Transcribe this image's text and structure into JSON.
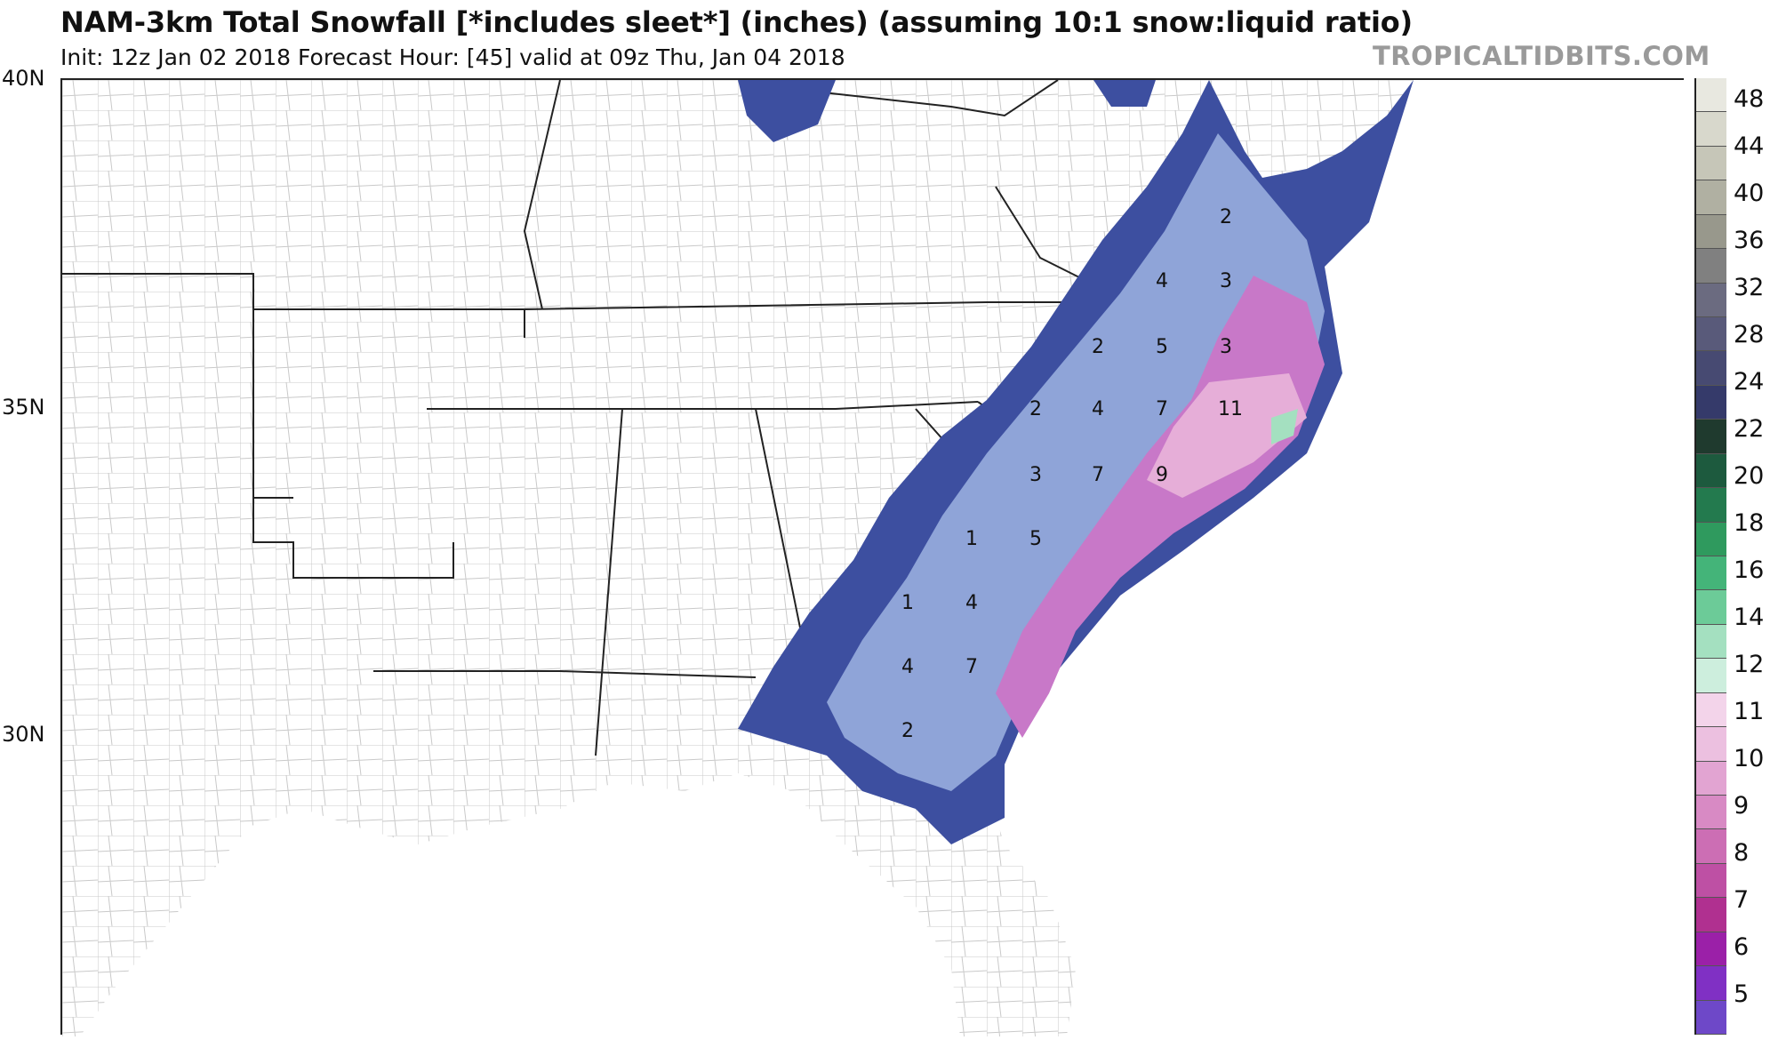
{
  "title": "NAM-3km Total Snowfall [*includes sleet*] (inches) (assuming 10:1 snow:liquid ratio)",
  "subtitle": "Init: 12z Jan 02 2018   Forecast Hour: [45]   valid at 09z Thu, Jan 04 2018",
  "watermark": "TROPICALTIDBITS.COM",
  "lat_labels": [
    "40N",
    "35N",
    "30N"
  ],
  "colorbar": {
    "labels": [
      "48",
      "44",
      "40",
      "36",
      "32",
      "28",
      "24",
      "22",
      "20",
      "18",
      "16",
      "14",
      "12",
      "11",
      "10",
      "9",
      "8",
      "7",
      "6",
      "5"
    ],
    "colors": [
      "#e8e8e0",
      "#d8d8cc",
      "#c6c6b8",
      "#b0b0a2",
      "#98988c",
      "#808080",
      "#6b6b80",
      "#595a7a",
      "#474a72",
      "#353a6a",
      "#1f3a2e",
      "#1d5a3e",
      "#237a4e",
      "#2f9a5e",
      "#44b479",
      "#6ccb98",
      "#a4e0c0",
      "#cdeedd",
      "#f3d4ea",
      "#ecc0e0",
      "#e2a4d2",
      "#d88ac4",
      "#cc6eb4",
      "#be50a4",
      "#b03090",
      "#9b20a8",
      "#8030c4",
      "#6e48c8"
    ]
  },
  "contour_labels": [
    "2",
    "4",
    "3",
    "2",
    "5",
    "3",
    "2",
    "4",
    "7",
    "11",
    "3",
    "7",
    "9",
    "1",
    "5",
    "1",
    "4",
    "4",
    "7",
    "2"
  ]
}
